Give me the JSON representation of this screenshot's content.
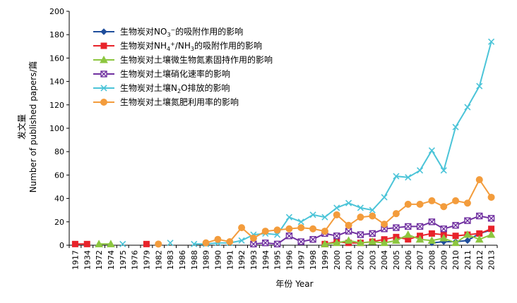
{
  "chart_data": {
    "type": "line",
    "title": "",
    "xlabel": "年份 Year",
    "ylabel_cn": "发文量",
    "ylabel_en": "Number of published papers/篇",
    "ylim": [
      0,
      200
    ],
    "yticks": [
      "0",
      "20",
      "40",
      "60",
      "80",
      "100",
      "120",
      "140",
      "160",
      "180",
      "200"
    ],
    "grid": false,
    "legend_position": "top-left",
    "categories": [
      "1917",
      "1934",
      "1972",
      "1974",
      "1975",
      "1976",
      "1979",
      "1982",
      "1983",
      "1986",
      "1988",
      "1989",
      "1990",
      "1991",
      "1992",
      "1993",
      "1994",
      "1995",
      "1996",
      "1997",
      "1998",
      "1999",
      "2000",
      "2001",
      "2002",
      "2003",
      "2004",
      "2005",
      "2006",
      "2007",
      "2008",
      "2009",
      "2010",
      "2011",
      "2012",
      "2013"
    ],
    "series": [
      {
        "name": "生物炭对NO3−的吸附作用的影响",
        "name_parts": {
          "a": "生物炭对NO",
          "sub": "3",
          "sup": "−",
          "b": "的吸附作用的影响"
        },
        "color": "#1f4e9c",
        "marker": "diamond",
        "values": [
          null,
          null,
          null,
          null,
          null,
          null,
          null,
          null,
          null,
          null,
          null,
          null,
          null,
          null,
          null,
          null,
          null,
          null,
          null,
          null,
          null,
          null,
          null,
          null,
          null,
          null,
          null,
          null,
          null,
          null,
          2,
          3,
          3,
          4,
          10,
          13
        ]
      },
      {
        "name": "生物炭对NH4+/NH3的吸附作用的影响",
        "name_parts": {
          "a": "生物炭对NH",
          "sub": "4",
          "sup": "+",
          "mid": "/NH",
          "sub2": "3",
          "b": "的吸附作用的影响"
        },
        "color": "#e8232a",
        "marker": "square",
        "values": [
          1,
          1,
          null,
          null,
          null,
          null,
          1,
          null,
          null,
          null,
          null,
          null,
          null,
          null,
          null,
          null,
          null,
          null,
          null,
          null,
          null,
          1,
          3,
          2,
          2,
          3,
          5,
          7,
          5,
          8,
          10,
          9,
          8,
          9,
          10,
          14
        ]
      },
      {
        "name": "生物炭对土壤微生物氮素固持作用的影响",
        "color": "#8cc63f",
        "marker": "triangle",
        "values": [
          null,
          null,
          1,
          1,
          null,
          null,
          null,
          null,
          null,
          null,
          null,
          null,
          null,
          null,
          null,
          null,
          null,
          null,
          null,
          null,
          null,
          1,
          2,
          4,
          2,
          3,
          2,
          4,
          9,
          5,
          4,
          6,
          2,
          9,
          5,
          9
        ]
      },
      {
        "name": "生物炭对土壤硝化速率的影响",
        "color": "#7030a0",
        "marker": "x-square",
        "values": [
          null,
          null,
          null,
          null,
          null,
          null,
          null,
          null,
          null,
          null,
          null,
          null,
          null,
          null,
          null,
          1,
          2,
          1,
          8,
          3,
          5,
          10,
          8,
          12,
          9,
          10,
          14,
          15,
          16,
          16,
          20,
          14,
          17,
          21,
          25,
          23
        ]
      },
      {
        "name": "生物炭对土壤N2O排放的影响",
        "name_parts": {
          "a": "生物炭对土壤N",
          "sub": "2",
          "b": "O排放的影响"
        },
        "color": "#4bc4d8",
        "marker": "x",
        "values": [
          null,
          null,
          null,
          null,
          1,
          null,
          null,
          null,
          2,
          null,
          1,
          1,
          2,
          2,
          4,
          9,
          10,
          9,
          24,
          20,
          26,
          24,
          32,
          36,
          32,
          30,
          41,
          59,
          58,
          64,
          81,
          64,
          101,
          118,
          136,
          174
        ]
      },
      {
        "name": "生物炭对土壤氮肥利用率的影响",
        "color": "#f39c3c",
        "marker": "circle",
        "values": [
          null,
          null,
          null,
          null,
          null,
          null,
          null,
          1,
          null,
          null,
          null,
          2,
          5,
          3,
          15,
          6,
          12,
          13,
          14,
          15,
          14,
          12,
          26,
          17,
          24,
          25,
          18,
          27,
          35,
          35,
          38,
          33,
          38,
          36,
          56,
          41
        ]
      }
    ]
  }
}
